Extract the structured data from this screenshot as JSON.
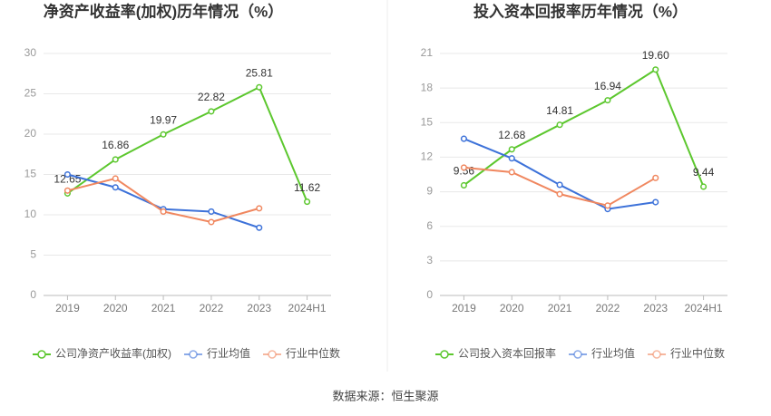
{
  "chart_data": [
    {
      "type": "line",
      "title": "净资产收益率(加权)历年情况（%）",
      "categories": [
        "2019",
        "2020",
        "2021",
        "2022",
        "2023",
        "2024H1"
      ],
      "series": [
        {
          "name": "公司净资产收益率(加权)",
          "color": "#5cc72e",
          "values": [
            12.65,
            16.86,
            19.97,
            22.82,
            25.81,
            11.62
          ],
          "labels": true
        },
        {
          "name": "行业均值",
          "color": "#3d72d9",
          "values": [
            15.0,
            13.4,
            10.7,
            10.4,
            8.4,
            null
          ]
        },
        {
          "name": "行业中位数",
          "color": "#f0875f",
          "values": [
            13.0,
            14.5,
            10.4,
            9.1,
            10.8,
            null
          ]
        }
      ],
      "ylim": [
        0,
        30
      ],
      "yticks": [
        0,
        5,
        10,
        15,
        20,
        25,
        30
      ],
      "grid": true
    },
    {
      "type": "line",
      "title": "投入资本回报率历年情况（%）",
      "categories": [
        "2019",
        "2020",
        "2021",
        "2022",
        "2023",
        "2024H1"
      ],
      "series": [
        {
          "name": "公司投入资本回报率",
          "color": "#5cc72e",
          "values": [
            9.56,
            12.68,
            14.81,
            16.94,
            19.6,
            9.44
          ],
          "value_labels": [
            "9.56",
            "12.68",
            "14.81",
            "16.94",
            "19.60",
            "9.44"
          ],
          "labels": true
        },
        {
          "name": "行业均值",
          "color": "#3d72d9",
          "values": [
            13.6,
            11.9,
            9.6,
            7.5,
            8.1,
            null
          ]
        },
        {
          "name": "行业中位数",
          "color": "#f0875f",
          "values": [
            11.1,
            10.7,
            8.8,
            7.8,
            10.2,
            null
          ]
        }
      ],
      "ylim": [
        0,
        21
      ],
      "yticks": [
        0,
        3,
        6,
        9,
        12,
        15,
        18,
        21
      ],
      "grid": true
    }
  ],
  "source": "数据来源：恒生聚源"
}
